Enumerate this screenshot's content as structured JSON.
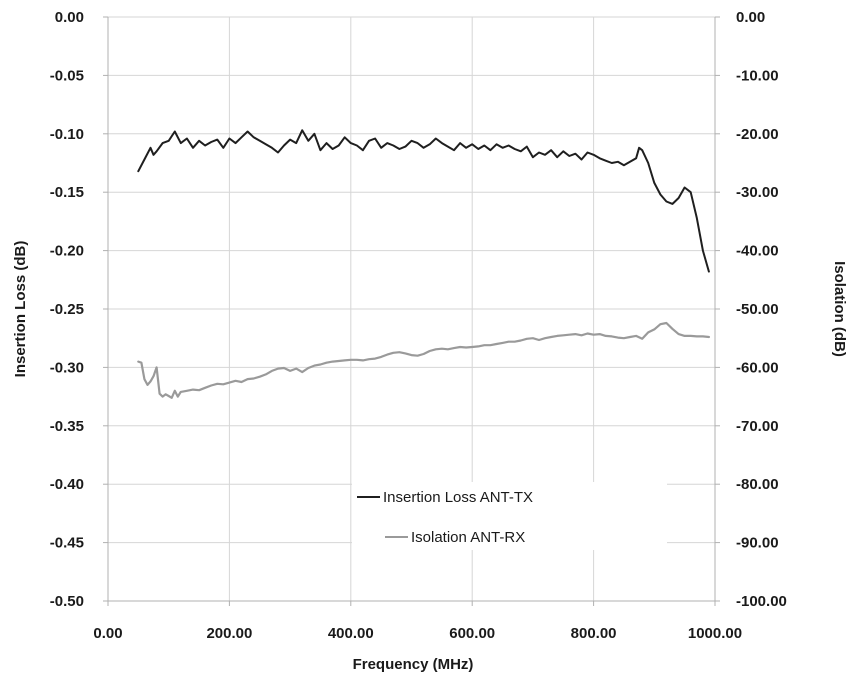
{
  "chart_data": {
    "type": "line",
    "xlabel": "Frequency (MHz)",
    "ylabel_left": "Insertion Loss (dB)",
    "ylabel_right": "Isolation (dB)",
    "xlim": [
      0,
      1000
    ],
    "ylim_left": [
      -0.5,
      0
    ],
    "ylim_right": [
      -100,
      0
    ],
    "grid": "vertical",
    "legend_position": "bottom-right (inside plot)",
    "x_ticks": [
      "0.00",
      "200.00",
      "400.00",
      "600.00",
      "800.00",
      "1000.00"
    ],
    "y_left_ticks": [
      "0.00",
      "-0.05",
      "-0.10",
      "-0.15",
      "-0.20",
      "-0.25",
      "-0.30",
      "-0.35",
      "-0.40",
      "-0.45",
      "-0.50"
    ],
    "y_right_ticks": [
      "0.00",
      "-10.00",
      "-20.00",
      "-30.00",
      "-40.00",
      "-50.00",
      "-60.00",
      "-70.00",
      "-80.00",
      "-90.00",
      "-100.00"
    ],
    "series": [
      {
        "name": "Insertion Loss ANT-TX",
        "axis": "left",
        "color": "#1f1f1f",
        "x": [
          50,
          60,
          70,
          75,
          80,
          90,
          100,
          110,
          120,
          130,
          140,
          150,
          160,
          170,
          180,
          190,
          200,
          210,
          220,
          230,
          240,
          250,
          260,
          270,
          280,
          290,
          300,
          310,
          320,
          330,
          340,
          350,
          360,
          370,
          380,
          390,
          400,
          410,
          420,
          430,
          440,
          450,
          460,
          470,
          480,
          490,
          500,
          510,
          520,
          530,
          540,
          550,
          560,
          570,
          580,
          590,
          600,
          610,
          620,
          630,
          640,
          650,
          660,
          670,
          680,
          690,
          700,
          710,
          720,
          730,
          740,
          750,
          760,
          770,
          780,
          790,
          800,
          810,
          820,
          830,
          840,
          850,
          860,
          870,
          875,
          880,
          890,
          900,
          910,
          920,
          930,
          940,
          950,
          960,
          970,
          980,
          990
        ],
        "y": [
          -0.132,
          -0.122,
          -0.112,
          -0.118,
          -0.115,
          -0.108,
          -0.106,
          -0.098,
          -0.108,
          -0.104,
          -0.112,
          -0.106,
          -0.11,
          -0.107,
          -0.105,
          -0.112,
          -0.104,
          -0.108,
          -0.103,
          -0.098,
          -0.103,
          -0.106,
          -0.109,
          -0.112,
          -0.116,
          -0.11,
          -0.105,
          -0.108,
          -0.097,
          -0.106,
          -0.1,
          -0.114,
          -0.108,
          -0.113,
          -0.11,
          -0.103,
          -0.108,
          -0.11,
          -0.114,
          -0.106,
          -0.104,
          -0.112,
          -0.108,
          -0.11,
          -0.113,
          -0.111,
          -0.106,
          -0.108,
          -0.112,
          -0.109,
          -0.104,
          -0.108,
          -0.111,
          -0.114,
          -0.108,
          -0.112,
          -0.109,
          -0.113,
          -0.11,
          -0.114,
          -0.109,
          -0.112,
          -0.11,
          -0.113,
          -0.115,
          -0.111,
          -0.12,
          -0.116,
          -0.118,
          -0.114,
          -0.12,
          -0.115,
          -0.119,
          -0.117,
          -0.122,
          -0.116,
          -0.118,
          -0.121,
          -0.123,
          -0.125,
          -0.124,
          -0.127,
          -0.124,
          -0.121,
          -0.112,
          -0.114,
          -0.125,
          -0.142,
          -0.152,
          -0.158,
          -0.16,
          -0.155,
          -0.146,
          -0.15,
          -0.172,
          -0.2,
          -0.218
        ]
      },
      {
        "name": "Isolation ANT-RX",
        "axis": "right",
        "color": "#9a9a9a",
        "x": [
          50,
          55,
          60,
          65,
          70,
          75,
          80,
          85,
          90,
          95,
          100,
          105,
          110,
          115,
          120,
          130,
          140,
          150,
          160,
          170,
          180,
          190,
          200,
          210,
          220,
          230,
          240,
          250,
          260,
          270,
          280,
          290,
          300,
          310,
          320,
          330,
          340,
          350,
          360,
          370,
          380,
          390,
          400,
          410,
          420,
          430,
          440,
          450,
          460,
          470,
          480,
          490,
          500,
          510,
          520,
          530,
          540,
          550,
          560,
          570,
          580,
          590,
          600,
          610,
          620,
          630,
          640,
          650,
          660,
          670,
          680,
          690,
          700,
          710,
          720,
          730,
          740,
          750,
          760,
          770,
          780,
          790,
          800,
          810,
          820,
          830,
          840,
          850,
          860,
          870,
          880,
          890,
          900,
          910,
          920,
          930,
          940,
          950,
          960,
          970,
          980,
          990
        ],
        "y": [
          -59.0,
          -59.2,
          -62.0,
          -63.0,
          -62.4,
          -61.5,
          -60.0,
          -64.5,
          -65.0,
          -64.6,
          -64.9,
          -65.2,
          -64.0,
          -65.0,
          -64.2,
          -64.0,
          -63.8,
          -63.9,
          -63.5,
          -63.1,
          -62.8,
          -62.9,
          -62.6,
          -62.3,
          -62.5,
          -62.0,
          -61.9,
          -61.6,
          -61.2,
          -60.6,
          -60.2,
          -60.1,
          -60.6,
          -60.2,
          -60.8,
          -60.1,
          -59.7,
          -59.5,
          -59.2,
          -59.0,
          -58.9,
          -58.8,
          -58.7,
          -58.7,
          -58.8,
          -58.6,
          -58.5,
          -58.2,
          -57.8,
          -57.5,
          -57.4,
          -57.6,
          -57.9,
          -58.0,
          -57.7,
          -57.2,
          -56.9,
          -56.8,
          -56.9,
          -56.7,
          -56.5,
          -56.6,
          -56.5,
          -56.4,
          -56.2,
          -56.2,
          -56.0,
          -55.8,
          -55.6,
          -55.6,
          -55.4,
          -55.1,
          -55.0,
          -55.3,
          -55.0,
          -54.8,
          -54.6,
          -54.5,
          -54.4,
          -54.3,
          -54.5,
          -54.2,
          -54.4,
          -54.3,
          -54.6,
          -54.7,
          -54.9,
          -55.0,
          -54.8,
          -54.6,
          -55.1,
          -54.0,
          -53.5,
          -52.6,
          -52.4,
          -53.4,
          -54.3,
          -54.6,
          -54.6,
          -54.7,
          -54.7,
          -54.8
        ]
      }
    ]
  }
}
